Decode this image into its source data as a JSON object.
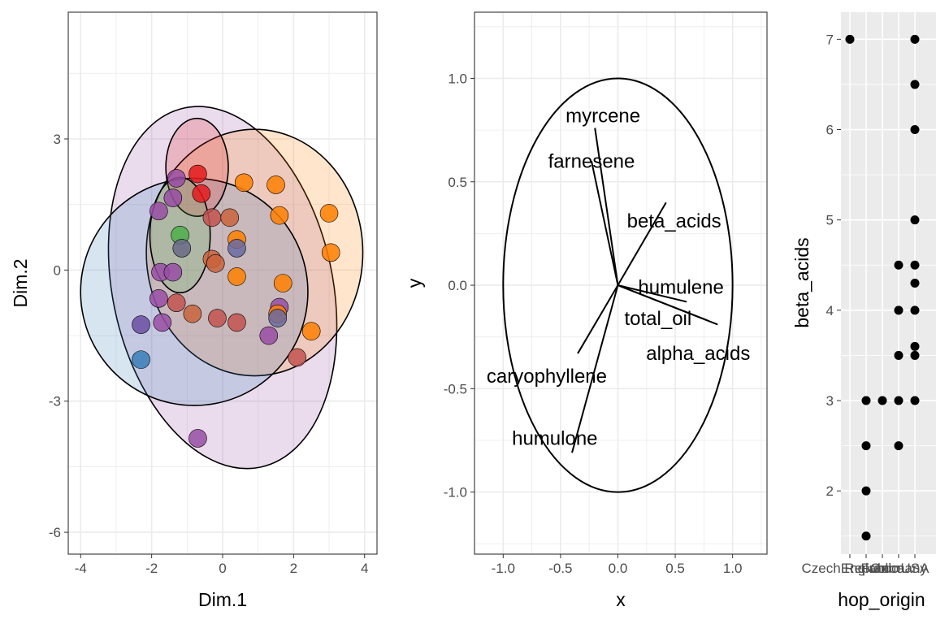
{
  "chart_data": [
    {
      "type": "scatter",
      "xlabel": "Dim.1",
      "ylabel": "Dim.2",
      "xlim": [
        -4.35,
        4.35
      ],
      "ylim": [
        -6.5,
        5.9
      ],
      "x_ticks": [
        -4,
        -2,
        0,
        2,
        4
      ],
      "x_tick_labels": [
        "-4",
        "-2",
        "0",
        "2",
        "4"
      ],
      "y_ticks": [
        -6,
        -3,
        0,
        3
      ],
      "y_tick_labels": [
        "-6",
        "-3",
        "0",
        "3"
      ],
      "grid": true,
      "colors": {
        "purple": "#984ea3",
        "blue": "#377eb8",
        "orange": "#ff7f00",
        "red": "#e41a1c",
        "green": "#4daf4a"
      },
      "ellipses": [
        {
          "cx": 0.0,
          "cy": -0.4,
          "rx": 3.1,
          "ry": 4.2,
          "angle": 78,
          "fill": "#984ea3"
        },
        {
          "cx": 0.9,
          "cy": 0.4,
          "rx": 3.05,
          "ry": 2.82,
          "angle": 0,
          "fill": "#ff7f00"
        },
        {
          "cx": -0.8,
          "cy": -0.5,
          "rx": 3.2,
          "ry": 2.6,
          "angle": 12,
          "fill": "#377eb8"
        },
        {
          "cx": -0.72,
          "cy": 2.35,
          "rx": 0.88,
          "ry": 1.12,
          "angle": 0,
          "fill": "#e41a1c"
        },
        {
          "cx": -1.2,
          "cy": 0.8,
          "rx": 0.85,
          "ry": 1.32,
          "angle": 0,
          "fill": "#4daf4a"
        }
      ],
      "points": [
        {
          "x": -1.3,
          "y": 2.1,
          "color": "#984ea3"
        },
        {
          "x": -0.7,
          "y": 2.2,
          "color": "#e41a1c"
        },
        {
          "x": 0.6,
          "y": 2.0,
          "color": "#ff7f00"
        },
        {
          "x": 1.5,
          "y": 1.95,
          "color": "#ff7f00"
        },
        {
          "x": -0.6,
          "y": 1.75,
          "color": "#e41a1c"
        },
        {
          "x": -1.4,
          "y": 1.65,
          "color": "#984ea3"
        },
        {
          "x": -1.8,
          "y": 1.35,
          "color": "#984ea3"
        },
        {
          "x": -0.3,
          "y": 1.2,
          "color": "#c2524f"
        },
        {
          "x": 0.2,
          "y": 1.2,
          "color": "#c8633c"
        },
        {
          "x": 1.6,
          "y": 1.25,
          "color": "#ff7f00"
        },
        {
          "x": 3.0,
          "y": 1.3,
          "color": "#ff7f00"
        },
        {
          "x": -1.2,
          "y": 0.8,
          "color": "#4daf4a"
        },
        {
          "x": 0.4,
          "y": 0.7,
          "color": "#ff7f00"
        },
        {
          "x": -1.15,
          "y": 0.5,
          "color": "#6a6a86"
        },
        {
          "x": 0.4,
          "y": 0.5,
          "color": "#6a6aa0"
        },
        {
          "x": 3.05,
          "y": 0.4,
          "color": "#ff7f00"
        },
        {
          "x": -0.3,
          "y": 0.25,
          "color": "#c8633c"
        },
        {
          "x": -0.2,
          "y": 0.15,
          "color": "#c8633c"
        },
        {
          "x": -1.75,
          "y": -0.05,
          "color": "#984ea3"
        },
        {
          "x": -1.4,
          "y": -0.05,
          "color": "#984ea3"
        },
        {
          "x": 0.4,
          "y": -0.15,
          "color": "#ff7f00"
        },
        {
          "x": 1.7,
          "y": -0.3,
          "color": "#ff7f00"
        },
        {
          "x": -1.8,
          "y": -0.65,
          "color": "#984ea3"
        },
        {
          "x": -1.3,
          "y": -0.75,
          "color": "#c2524f"
        },
        {
          "x": 1.6,
          "y": -0.85,
          "color": "#984ea3"
        },
        {
          "x": -0.85,
          "y": -1.0,
          "color": "#c8633c"
        },
        {
          "x": 1.55,
          "y": -1.0,
          "color": "#ff7f00"
        },
        {
          "x": 1.55,
          "y": -1.1,
          "color": "#6a6aa0"
        },
        {
          "x": -0.15,
          "y": -1.1,
          "color": "#c2524f"
        },
        {
          "x": -1.7,
          "y": -1.2,
          "color": "#984ea3"
        },
        {
          "x": 0.4,
          "y": -1.2,
          "color": "#c2524f"
        },
        {
          "x": -2.3,
          "y": -1.25,
          "color": "#6a4ea3"
        },
        {
          "x": 2.5,
          "y": -1.4,
          "color": "#ff7f00"
        },
        {
          "x": 1.3,
          "y": -1.5,
          "color": "#984ea3"
        },
        {
          "x": 2.1,
          "y": -2.0,
          "color": "#c2524f"
        },
        {
          "x": -2.3,
          "y": -2.05,
          "color": "#377eb8"
        },
        {
          "x": -0.7,
          "y": -3.85,
          "color": "#984ea3"
        }
      ]
    },
    {
      "type": "line",
      "xlabel": "x",
      "ylabel": "y",
      "xlim": [
        -1.25,
        1.3
      ],
      "ylim": [
        -1.3,
        1.32
      ],
      "x_ticks": [
        -1.0,
        -0.5,
        0.0,
        0.5,
        1.0
      ],
      "x_tick_labels": [
        "-1.0",
        "-0.5",
        "0.0",
        "0.5",
        "1.0"
      ],
      "y_ticks": [
        -1.0,
        -0.5,
        0.0,
        0.5,
        1.0
      ],
      "y_tick_labels": [
        "-1.0",
        "-0.5",
        "0.0",
        "0.5",
        "1.0"
      ],
      "grid": true,
      "circle_radius": 1.0,
      "vectors": [
        {
          "name": "myrcene",
          "x": -0.2,
          "y": 0.76,
          "lx": -0.13,
          "ly": 0.82
        },
        {
          "name": "farnesene",
          "x": -0.23,
          "y": 0.6,
          "lx": -0.23,
          "ly": 0.6
        },
        {
          "name": "beta_acids",
          "x": 0.42,
          "y": 0.4,
          "lx": 0.49,
          "ly": 0.31
        },
        {
          "name": "humulene",
          "x": 0.6,
          "y": -0.08,
          "lx": 0.55,
          "ly": -0.01
        },
        {
          "name": "total_oil",
          "x": 0.78,
          "y": -0.17,
          "lx": 0.35,
          "ly": -0.16
        },
        {
          "name": "alpha_acids",
          "x": 0.87,
          "y": -0.19,
          "lx": 0.7,
          "ly": -0.33
        },
        {
          "name": "caryophyllene",
          "x": -0.35,
          "y": -0.33,
          "lx": -0.62,
          "ly": -0.44
        },
        {
          "name": "humulone",
          "x": -0.4,
          "y": -0.81,
          "lx": -0.55,
          "ly": -0.74
        }
      ]
    },
    {
      "type": "scatter",
      "xlabel": "hop_origin",
      "ylabel": "beta_acids",
      "categories": [
        "Czech Republic",
        "England",
        "France",
        "Germany",
        "USA"
      ],
      "x_tick_labels": [
        "Czech Republic",
        "England",
        "France",
        "Germany",
        "USA"
      ],
      "ylim": [
        1.3,
        7.3
      ],
      "y_ticks": [
        2,
        3,
        4,
        5,
        6,
        7
      ],
      "y_tick_labels": [
        "2",
        "3",
        "4",
        "5",
        "6",
        "7"
      ],
      "grid": true,
      "points": [
        {
          "x": "Czech Republic",
          "y": 7.0
        },
        {
          "x": "England",
          "y": 3.0
        },
        {
          "x": "England",
          "y": 2.5
        },
        {
          "x": "England",
          "y": 2.0
        },
        {
          "x": "England",
          "y": 1.5
        },
        {
          "x": "France",
          "y": 3.0
        },
        {
          "x": "Germany",
          "y": 4.5
        },
        {
          "x": "Germany",
          "y": 4.0
        },
        {
          "x": "Germany",
          "y": 3.5
        },
        {
          "x": "Germany",
          "y": 3.0
        },
        {
          "x": "Germany",
          "y": 2.5
        },
        {
          "x": "USA",
          "y": 7.0
        },
        {
          "x": "USA",
          "y": 6.5
        },
        {
          "x": "USA",
          "y": 6.0
        },
        {
          "x": "USA",
          "y": 5.0
        },
        {
          "x": "USA",
          "y": 4.5
        },
        {
          "x": "USA",
          "y": 4.3
        },
        {
          "x": "USA",
          "y": 4.0
        },
        {
          "x": "USA",
          "y": 3.6
        },
        {
          "x": "USA",
          "y": 3.5
        },
        {
          "x": "USA",
          "y": 3.0
        }
      ]
    }
  ]
}
